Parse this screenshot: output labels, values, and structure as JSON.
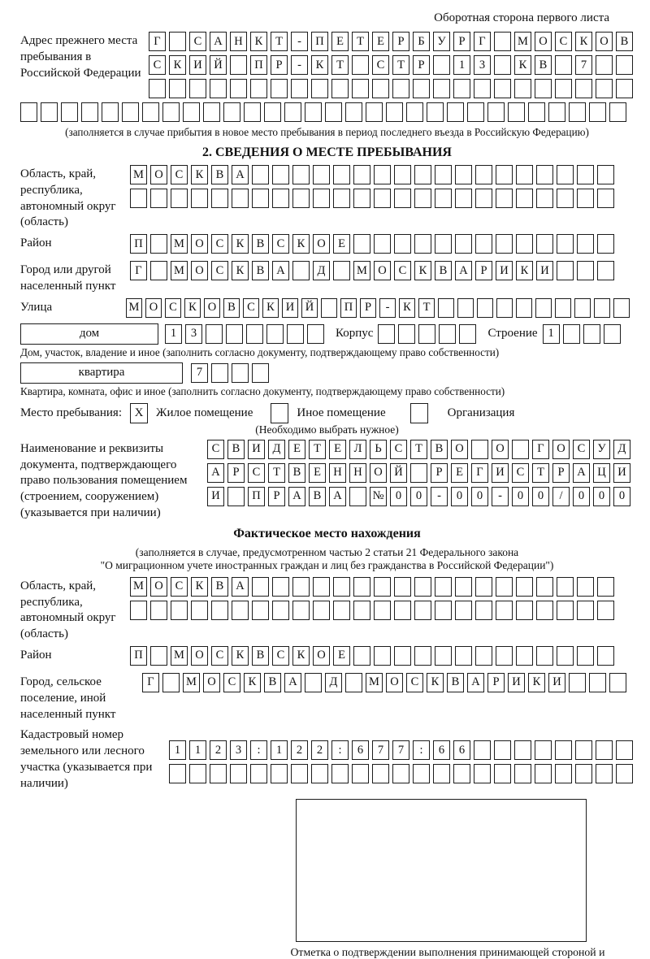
{
  "page": {
    "header_note": "Оборотная сторона первого листа"
  },
  "prev_address": {
    "label": "Адрес прежнего места пребывания в Российской Федерации",
    "rows": [
      "Г САНКТ-ПЕТЕРБУРГ МОСКОВ",
      "СКИЙ ПР-КТ СТР 13 КВ 7  ",
      "                        "
    ],
    "row_full": "                              ",
    "caption": "(заполняется в случае прибытия в новое место пребывания в период последнего въезда в Российскую Федерацию)"
  },
  "section2": {
    "title": "2. СВЕДЕНИЯ О МЕСТЕ ПРЕБЫВАНИЯ",
    "region": {
      "label": "Область, край, республика, автономный округ (область)",
      "rows": [
        "МОСКВА                  ",
        "                        "
      ]
    },
    "district": {
      "label": "Район",
      "row": "П МОСКВСКОЕ             "
    },
    "city": {
      "label": "Город или другой населенный пункт",
      "row": "Г МОСКВА Д МОСКВАРИКИ   "
    },
    "street": {
      "label": "Улица",
      "row": "МОСКОВСКИЙ ПР-КТ          "
    },
    "house": {
      "box_label": "дом",
      "cells": "13      ",
      "korpus_label": "Корпус",
      "korpus_cells": "     ",
      "stroenie_label": "Строение",
      "stroenie_cells": "1   "
    },
    "house_caption": "Дом, участок, владение и иное (заполнить согласно документу, подтверждающему право собственности)",
    "apartment": {
      "box_label": "квартира",
      "cells": "7   "
    },
    "apartment_caption": "Квартира, комната, офис и иное (заполнить согласно документу, подтверждающему право собственности)",
    "stay_type": {
      "label": "Место пребывания:",
      "options": [
        {
          "label": "Жилое помещение",
          "checked": "X"
        },
        {
          "label": "Иное помещение",
          "checked": ""
        },
        {
          "label": "Организация",
          "checked": ""
        }
      ],
      "note": "(Необходимо выбрать нужное)"
    },
    "doc": {
      "label": "Наименование и реквизиты документа, подтверждающего право пользования помещением (строением, сооружением) (указывается при наличии)",
      "rows": [
        "СВИДЕТЕЛЬСТВО О ГОСУД",
        "АРСТВЕННОЙ РЕГИСТРАЦИ",
        "И ПРАВА №00-00-00/000"
      ]
    }
  },
  "actual_location": {
    "title": "Фактическое место нахождения",
    "caption_line1": "(заполняется в случае, предусмотренном частью 2 статьи 21 Федерального закона",
    "caption_line2": "\"О миграционном учете иностранных граждан и лиц без гражданства в Российской Федерации\")",
    "region": {
      "label": "Область, край, республика, автономный округ (область)",
      "rows": [
        "МОСКВА                  ",
        "                        "
      ]
    },
    "district": {
      "label": "Район",
      "row": "П МОСКВСКОЕ             "
    },
    "settlement": {
      "label": "Город, сельское поселение, иной населенный пункт",
      "row": "Г МОСКВА Д МОСКВАРИКИ   "
    },
    "cadastral": {
      "label": "Кадастровый номер земельного или лесного участка (указывается при наличии)",
      "rows": [
        "1123:122:677:66        ",
        "                       "
      ]
    },
    "stamp_caption": "Отметка о подтверждении выполнения принимающей стороной и иностранным гражданином или лицом без гражданства действий, необходимых для его постановки на учет по месту пребывания"
  }
}
